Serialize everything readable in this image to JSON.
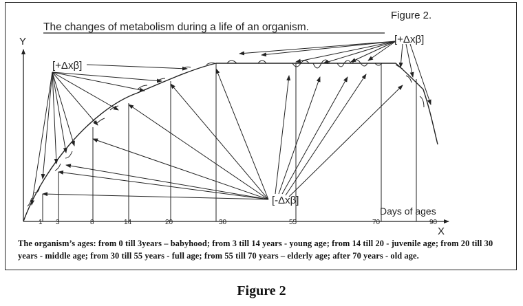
{
  "figure_label": "Figure 2.",
  "title": "The changes of metabolism during a life of an organism.",
  "axes": {
    "y_label": "Y",
    "x_label": "X",
    "x_axis_caption": "Days of ages",
    "x_ticks": [
      "1",
      "3",
      "8",
      "14",
      "20",
      "30",
      "55",
      "70",
      "90"
    ]
  },
  "labels": {
    "positive_left": "[+Δxβ]",
    "positive_right": "[+Δxβ]",
    "negative": "[-Δxβ]"
  },
  "caption": "The organism’s ages: from 0 till 3years – babyhood; from 3 till 14 years - young age; from 14 till 20 - juvenile age; from 20 till 30 years - middle age; from 30 till 55 years - full age; from 55 till 70 years – elderly age; after 70 years - old age.",
  "bottom_title": "Figure 2",
  "colors": {
    "ink": "#222222",
    "background": "#ffffff"
  }
}
